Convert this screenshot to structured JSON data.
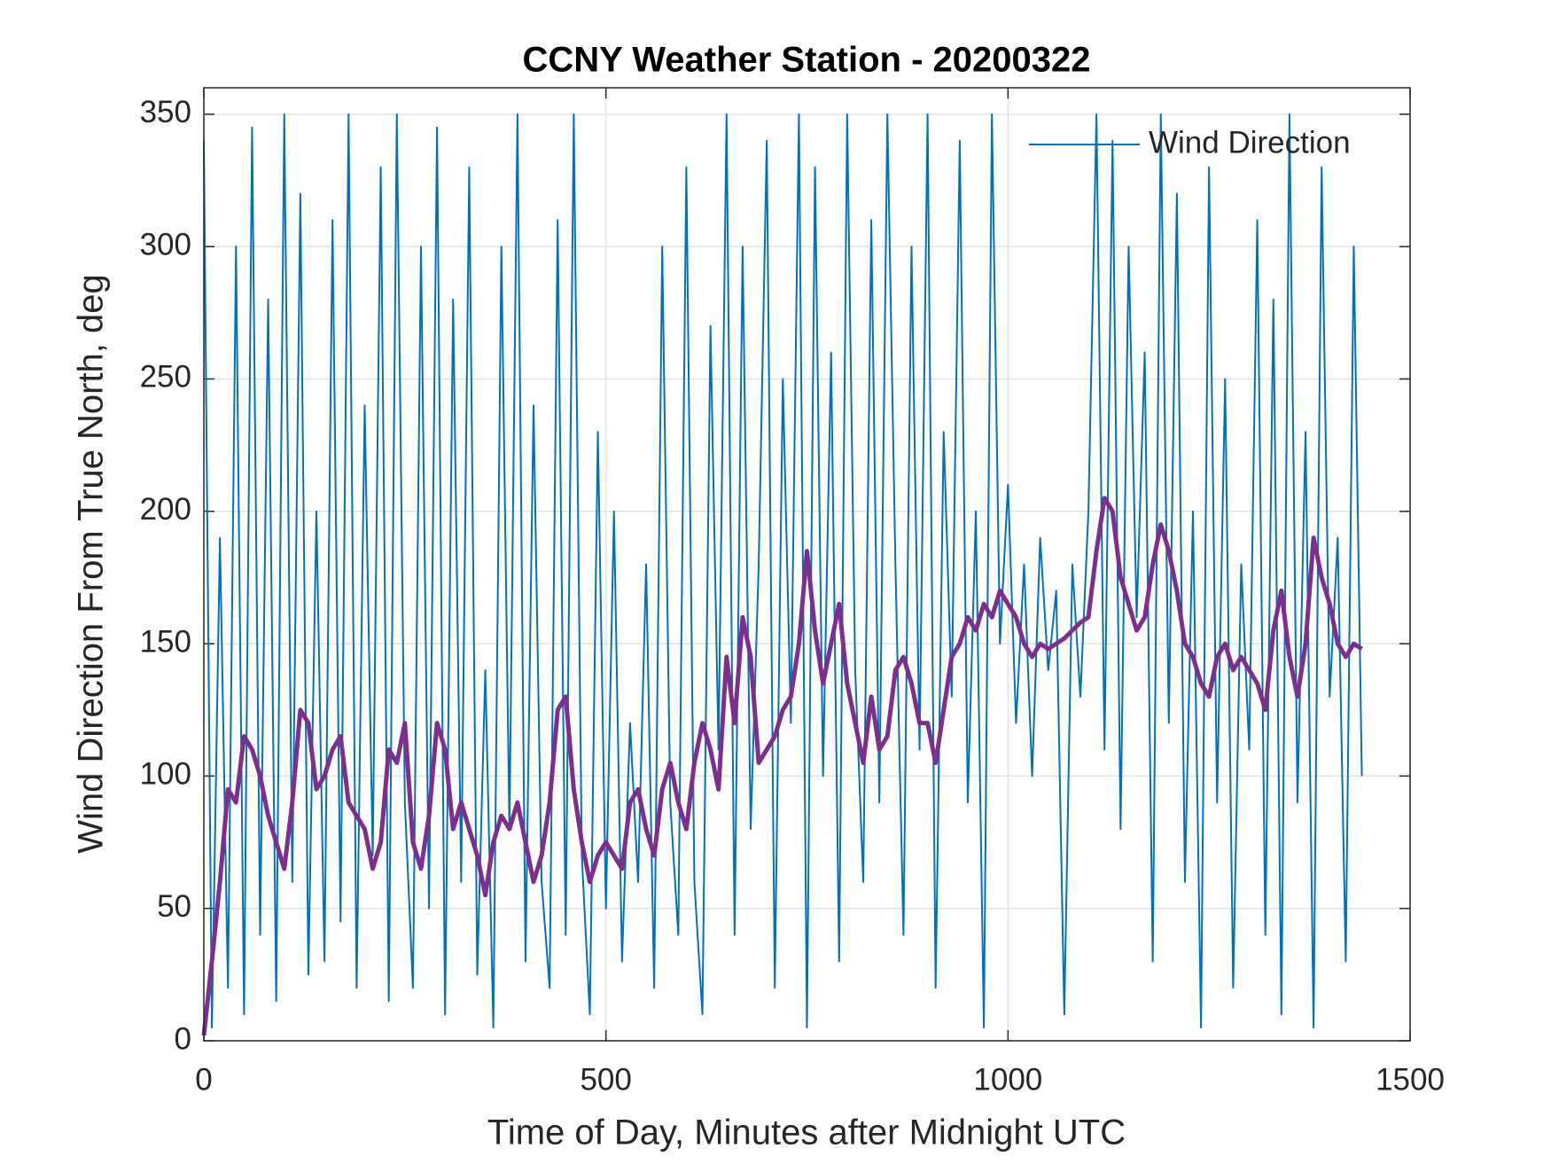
{
  "chart_data": {
    "type": "line",
    "title": "CCNY Weather Station - 20200322",
    "x_label": "Time of Day, Minutes after Midnight UTC",
    "y_label": "Wind Direction From True North, deg",
    "x": [
      0,
      10,
      20,
      30,
      40,
      50,
      60,
      70,
      80,
      90,
      100,
      110,
      120,
      130,
      140,
      150,
      160,
      170,
      180,
      190,
      200,
      210,
      220,
      230,
      240,
      250,
      260,
      270,
      280,
      290,
      300,
      310,
      320,
      330,
      340,
      350,
      360,
      370,
      380,
      390,
      400,
      410,
      420,
      430,
      440,
      450,
      460,
      470,
      480,
      490,
      500,
      510,
      520,
      530,
      540,
      550,
      560,
      570,
      580,
      590,
      600,
      610,
      620,
      630,
      640,
      650,
      660,
      670,
      680,
      690,
      700,
      710,
      720,
      730,
      740,
      750,
      760,
      770,
      780,
      790,
      800,
      810,
      820,
      830,
      840,
      850,
      860,
      870,
      880,
      890,
      900,
      910,
      920,
      930,
      940,
      950,
      960,
      970,
      980,
      990,
      1000,
      1010,
      1020,
      1030,
      1040,
      1050,
      1060,
      1070,
      1080,
      1090,
      1100,
      1110,
      1120,
      1130,
      1140,
      1150,
      1160,
      1170,
      1180,
      1190,
      1200,
      1210,
      1220,
      1230,
      1240,
      1250,
      1260,
      1270,
      1280,
      1290,
      1300,
      1310,
      1320,
      1330,
      1340,
      1350,
      1360,
      1370,
      1380,
      1390,
      1400,
      1410,
      1420,
      1430,
      1440
    ],
    "series": [
      {
        "name": "Wind Direction",
        "color": "#0072BD",
        "values": [
          340,
          5,
          190,
          20,
          300,
          10,
          345,
          40,
          280,
          15,
          350,
          60,
          320,
          25,
          200,
          30,
          310,
          45,
          350,
          20,
          240,
          70,
          330,
          15,
          350,
          90,
          20,
          300,
          50,
          345,
          10,
          280,
          60,
          330,
          25,
          140,
          5,
          300,
          80,
          350,
          30,
          240,
          60,
          20,
          310,
          40,
          350,
          70,
          10,
          230,
          50,
          200,
          30,
          120,
          60,
          180,
          20,
          300,
          90,
          40,
          330,
          60,
          10,
          270,
          110,
          350,
          40,
          300,
          80,
          180,
          340,
          20,
          250,
          120,
          350,
          5,
          330,
          100,
          260,
          30,
          350,
          140,
          60,
          310,
          90,
          350,
          180,
          40,
          300,
          110,
          350,
          20,
          230,
          130,
          340,
          90,
          200,
          5,
          350,
          150,
          210,
          120,
          180,
          100,
          190,
          140,
          170,
          10,
          180,
          130,
          200,
          350,
          110,
          340,
          80,
          300,
          160,
          260,
          30,
          350,
          120,
          320,
          60,
          200,
          5,
          330,
          90,
          250,
          20,
          180,
          110,
          310,
          40,
          280,
          10,
          350,
          90,
          230,
          5,
          330,
          130,
          190,
          30,
          300,
          100
        ]
      },
      {
        "color": "#7E2F8E",
        "values": [
          2,
          30,
          60,
          95,
          90,
          115,
          110,
          100,
          85,
          75,
          65,
          90,
          125,
          120,
          95,
          100,
          110,
          115,
          90,
          85,
          80,
          65,
          75,
          110,
          105,
          120,
          75,
          65,
          85,
          120,
          110,
          80,
          90,
          80,
          70,
          55,
          75,
          85,
          80,
          90,
          75,
          60,
          70,
          90,
          125,
          130,
          95,
          75,
          60,
          70,
          75,
          70,
          65,
          90,
          95,
          80,
          70,
          95,
          105,
          90,
          80,
          105,
          120,
          110,
          95,
          145,
          120,
          160,
          145,
          105,
          110,
          115,
          125,
          130,
          150,
          185,
          155,
          135,
          150,
          165,
          135,
          120,
          105,
          130,
          110,
          115,
          140,
          145,
          135,
          120,
          120,
          105,
          125,
          145,
          150,
          160,
          155,
          165,
          160,
          170,
          165,
          160,
          150,
          145,
          150,
          148,
          150,
          152,
          155,
          158,
          160,
          185,
          205,
          200,
          175,
          165,
          155,
          160,
          180,
          195,
          185,
          170,
          150,
          145,
          135,
          130,
          145,
          150,
          140,
          145,
          140,
          135,
          125,
          155,
          170,
          145,
          130,
          150,
          190,
          175,
          165,
          150,
          145,
          150,
          148
        ]
      }
    ],
    "xlim": [
      0,
      1500
    ],
    "xticks": [
      0,
      500,
      1000,
      1500
    ],
    "ylim": [
      0,
      360
    ],
    "yticks": [
      0,
      50,
      100,
      150,
      200,
      250,
      300,
      350
    ],
    "grid": true,
    "legend": "northeast"
  }
}
